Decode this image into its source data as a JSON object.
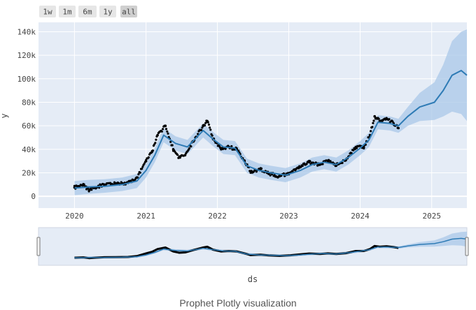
{
  "range_selector": {
    "buttons": [
      {
        "label": "1w",
        "active": false
      },
      {
        "label": "1m",
        "active": false
      },
      {
        "label": "6m",
        "active": false
      },
      {
        "label": "1y",
        "active": false
      },
      {
        "label": "all",
        "active": true
      }
    ]
  },
  "caption": "Prophet Plotly visualization",
  "colors": {
    "plot_bg": "#e5ecf6",
    "forecast_line": "#2e7bb5",
    "uncertainty_band": "#a9c8e8",
    "observed_points": "#000000"
  },
  "chart_data": {
    "type": "line",
    "xlabel": "ds",
    "ylabel": "y",
    "xlim": [
      "2019-07-01",
      "2025-06-30"
    ],
    "ylim": [
      -10000,
      148000
    ],
    "x_ticks": [
      "2020",
      "2021",
      "2022",
      "2023",
      "2024",
      "2025"
    ],
    "y_ticks": [
      {
        "value": 0,
        "label": "0"
      },
      {
        "value": 20000,
        "label": "20k"
      },
      {
        "value": 40000,
        "label": "40k"
      },
      {
        "value": 60000,
        "label": "60k"
      },
      {
        "value": 80000,
        "label": "80k"
      },
      {
        "value": 100000,
        "label": "100k"
      },
      {
        "value": 120000,
        "label": "120k"
      },
      {
        "value": 140000,
        "label": "140k"
      }
    ],
    "grid": true,
    "observed_end": "2024-07-15",
    "series": [
      {
        "kind": "observed",
        "x": [
          "2020-01-01",
          "2020-02-15",
          "2020-03-15",
          "2020-04-15",
          "2020-06-01",
          "2020-08-01",
          "2020-10-01",
          "2020-11-15",
          "2021-01-01",
          "2021-02-01",
          "2021-03-01",
          "2021-04-10",
          "2021-05-20",
          "2021-06-20",
          "2021-07-20",
          "2021-09-01",
          "2021-10-20",
          "2021-11-10",
          "2021-12-10",
          "2022-01-20",
          "2022-03-01",
          "2022-04-10",
          "2022-05-20",
          "2022-06-20",
          "2022-08-10",
          "2022-09-20",
          "2022-11-15",
          "2023-01-10",
          "2023-02-20",
          "2023-04-15",
          "2023-06-10",
          "2023-07-20",
          "2023-09-01",
          "2023-10-20",
          "2023-12-10",
          "2024-01-20",
          "2024-02-20",
          "2024-03-15",
          "2024-04-10",
          "2024-05-15",
          "2024-06-20",
          "2024-07-15"
        ],
        "y": [
          7500,
          9500,
          5500,
          7500,
          10000,
          11000,
          11500,
          16000,
          30000,
          38000,
          52000,
          60000,
          40000,
          33000,
          35000,
          47000,
          60000,
          64000,
          49000,
          40000,
          42000,
          40000,
          30000,
          21000,
          23000,
          19500,
          17000,
          20000,
          24000,
          29000,
          27000,
          30000,
          26500,
          31000,
          42000,
          42000,
          52000,
          68000,
          64000,
          66000,
          62000,
          58000
        ]
      },
      {
        "kind": "forecast",
        "x": [
          "2020-01-01",
          "2020-03-15",
          "2020-06-01",
          "2020-09-01",
          "2020-11-15",
          "2021-01-01",
          "2021-02-15",
          "2021-04-01",
          "2021-06-01",
          "2021-08-01",
          "2021-10-20",
          "2021-12-15",
          "2022-02-01",
          "2022-04-01",
          "2022-06-01",
          "2022-08-01",
          "2022-10-01",
          "2022-12-15",
          "2023-03-01",
          "2023-05-01",
          "2023-07-01",
          "2023-09-01",
          "2023-11-01",
          "2024-01-01",
          "2024-02-15",
          "2024-04-01",
          "2024-06-01",
          "2024-07-15",
          "2024-09-01",
          "2024-11-01",
          "2025-01-15",
          "2025-03-01",
          "2025-04-15",
          "2025-06-01",
          "2025-06-30"
        ],
        "y": [
          7000,
          8000,
          8500,
          10000,
          13000,
          22000,
          35000,
          52000,
          45000,
          42000,
          56000,
          48000,
          42000,
          41000,
          26000,
          22000,
          20000,
          18000,
          22000,
          27000,
          29000,
          27000,
          33000,
          41000,
          48000,
          63000,
          62000,
          60000,
          68000,
          76000,
          80000,
          90000,
          103000,
          107000,
          103000
        ],
        "lower": [
          1000,
          2000,
          3000,
          4500,
          7000,
          16000,
          29000,
          46000,
          39000,
          36000,
          50000,
          42000,
          36000,
          35000,
          20000,
          16000,
          14000,
          12000,
          16000,
          21000,
          23000,
          21000,
          27000,
          35000,
          42000,
          57000,
          56000,
          54000,
          60000,
          64000,
          65000,
          68000,
          72000,
          70000,
          64000
        ],
        "upper": [
          13000,
          14000,
          14500,
          16000,
          19000,
          28000,
          41000,
          58000,
          51000,
          48000,
          62000,
          54000,
          48000,
          47000,
          32000,
          28000,
          26000,
          24000,
          28000,
          33000,
          35000,
          33000,
          39000,
          47000,
          54000,
          69000,
          68000,
          66000,
          76000,
          88000,
          97000,
          112000,
          132000,
          140000,
          142000
        ]
      }
    ]
  }
}
